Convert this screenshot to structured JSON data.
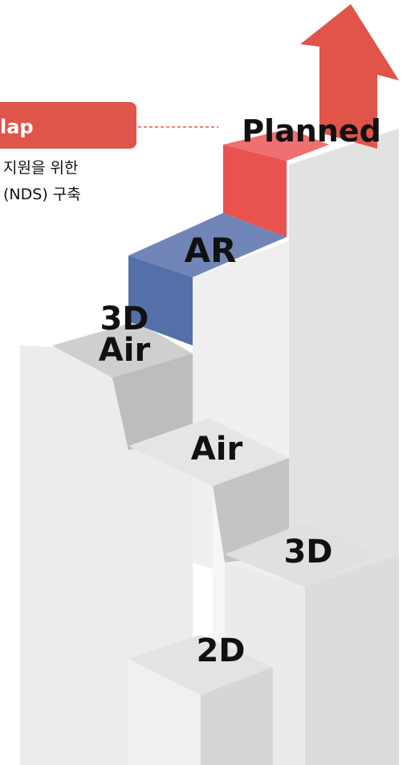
{
  "header": {
    "tag": "lap"
  },
  "description": [
    "지원을 위한",
    "(NDS) 구축"
  ],
  "steps": [
    {
      "label": "Planned"
    },
    {
      "label": "AR"
    },
    {
      "label": [
        "3D",
        "Air"
      ]
    },
    {
      "label": "Air"
    },
    {
      "label": "3D"
    },
    {
      "label": "2D"
    }
  ]
}
